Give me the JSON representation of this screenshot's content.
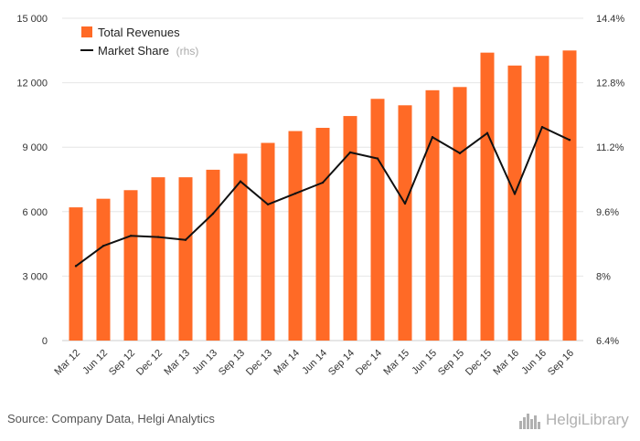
{
  "chart_data": {
    "type": "bar+line",
    "categories": [
      "Mar 12",
      "Jun 12",
      "Sep 12",
      "Dec 12",
      "Mar 13",
      "Jun 13",
      "Sep 13",
      "Dec 13",
      "Mar 14",
      "Jun 14",
      "Sep 14",
      "Dec 14",
      "Mar 15",
      "Jun 15",
      "Sep 15",
      "Dec 15",
      "Mar 16",
      "Jun 16",
      "Sep 16"
    ],
    "series": [
      {
        "name": "Total Revenues",
        "type": "bar",
        "axis": "left",
        "color": "#ff6a26",
        "values": [
          6200,
          6600,
          7000,
          7600,
          7600,
          7950,
          8700,
          9200,
          9750,
          9900,
          10450,
          11250,
          10950,
          11650,
          11800,
          13400,
          12800,
          13250,
          13500
        ]
      },
      {
        "name": "Market Share",
        "legend_suffix": "(rhs)",
        "type": "line",
        "axis": "right",
        "color": "#111111",
        "values": [
          8.25,
          8.75,
          9.0,
          8.97,
          8.9,
          9.55,
          10.35,
          9.78,
          10.05,
          10.32,
          11.07,
          10.92,
          9.8,
          11.45,
          11.05,
          11.55,
          10.04,
          11.7,
          11.38
        ]
      }
    ],
    "y_left": {
      "ticks": [
        "0",
        "3 000",
        "6 000",
        "9 000",
        "12 000",
        "15 000"
      ],
      "ylim": [
        0,
        15000
      ]
    },
    "y_right": {
      "ticks": [
        "6.4%",
        "8%",
        "9.6%",
        "11.2%",
        "12.8%",
        "14.4%"
      ],
      "ylim": [
        6.4,
        14.4
      ]
    },
    "legend": {
      "placement": "top-left"
    },
    "grid": {
      "horizontal": true,
      "vertical": false,
      "color": "#e6e6e6"
    }
  },
  "footer": {
    "source": "Source: Company Data, Helgi Analytics",
    "brand": "HelgiLibrary"
  }
}
